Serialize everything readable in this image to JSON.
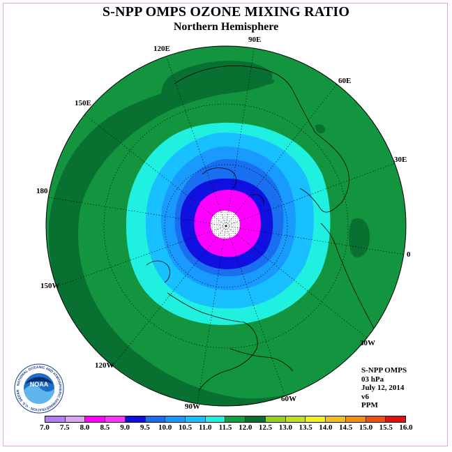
{
  "title": "S-NPP OMPS OZONE MIXING RATIO",
  "subtitle": "Northern Hemisphere",
  "longitude_labels": {
    "e90": "90E",
    "e120": "120E",
    "e60": "60E",
    "e150": "150E",
    "e30": "30E",
    "d180": "180",
    "d0": "0",
    "w150": "150W",
    "w30": "30W",
    "w120": "120W",
    "w60": "60W",
    "w90": "90W"
  },
  "info": {
    "instrument": "S-NPP OMPS",
    "level": "03 hPa",
    "date": "July 12, 2014",
    "version": "v6",
    "units": "PPM"
  },
  "logo": {
    "text": "NOAA",
    "ring_text": "NATIONAL OCEANIC AND ATMOSPHERIC ADMINISTRATION · U.S. DEPARTMENT OF COMMERCE"
  },
  "colorbar": {
    "labels": [
      "7.0",
      "7.5",
      "8.0",
      "8.5",
      "9.0",
      "9.5",
      "10.0",
      "10.5",
      "11.0",
      "11.5",
      "12.0",
      "12.5",
      "13.0",
      "13.5",
      "14.0",
      "14.5",
      "15.0",
      "15.5",
      "16.0"
    ],
    "colors": [
      "#b57ef0",
      "#d9a6f0",
      "#ff00ff",
      "#ff33ff",
      "#1010e0",
      "#1a6ef0",
      "#189aff",
      "#18c0ff",
      "#20f0e0",
      "#10a040",
      "#087030",
      "#9ad020",
      "#c0e020",
      "#f0f020",
      "#f0c020",
      "#f09010",
      "#f05010",
      "#e01010",
      "#8b5a2b"
    ]
  },
  "map_data": {
    "projection": "polar stereographic, north pole",
    "background_color": "#139540",
    "contour_colors": {
      "dark_green": "#087030",
      "green": "#139540",
      "cyan": "#20f0e0",
      "sky": "#18c0ff",
      "light_blue": "#189aff",
      "blue": "#1a6ef0",
      "dark_blue": "#1010e0",
      "magenta": "#ff00ff",
      "no_data": "#ffffff"
    }
  }
}
